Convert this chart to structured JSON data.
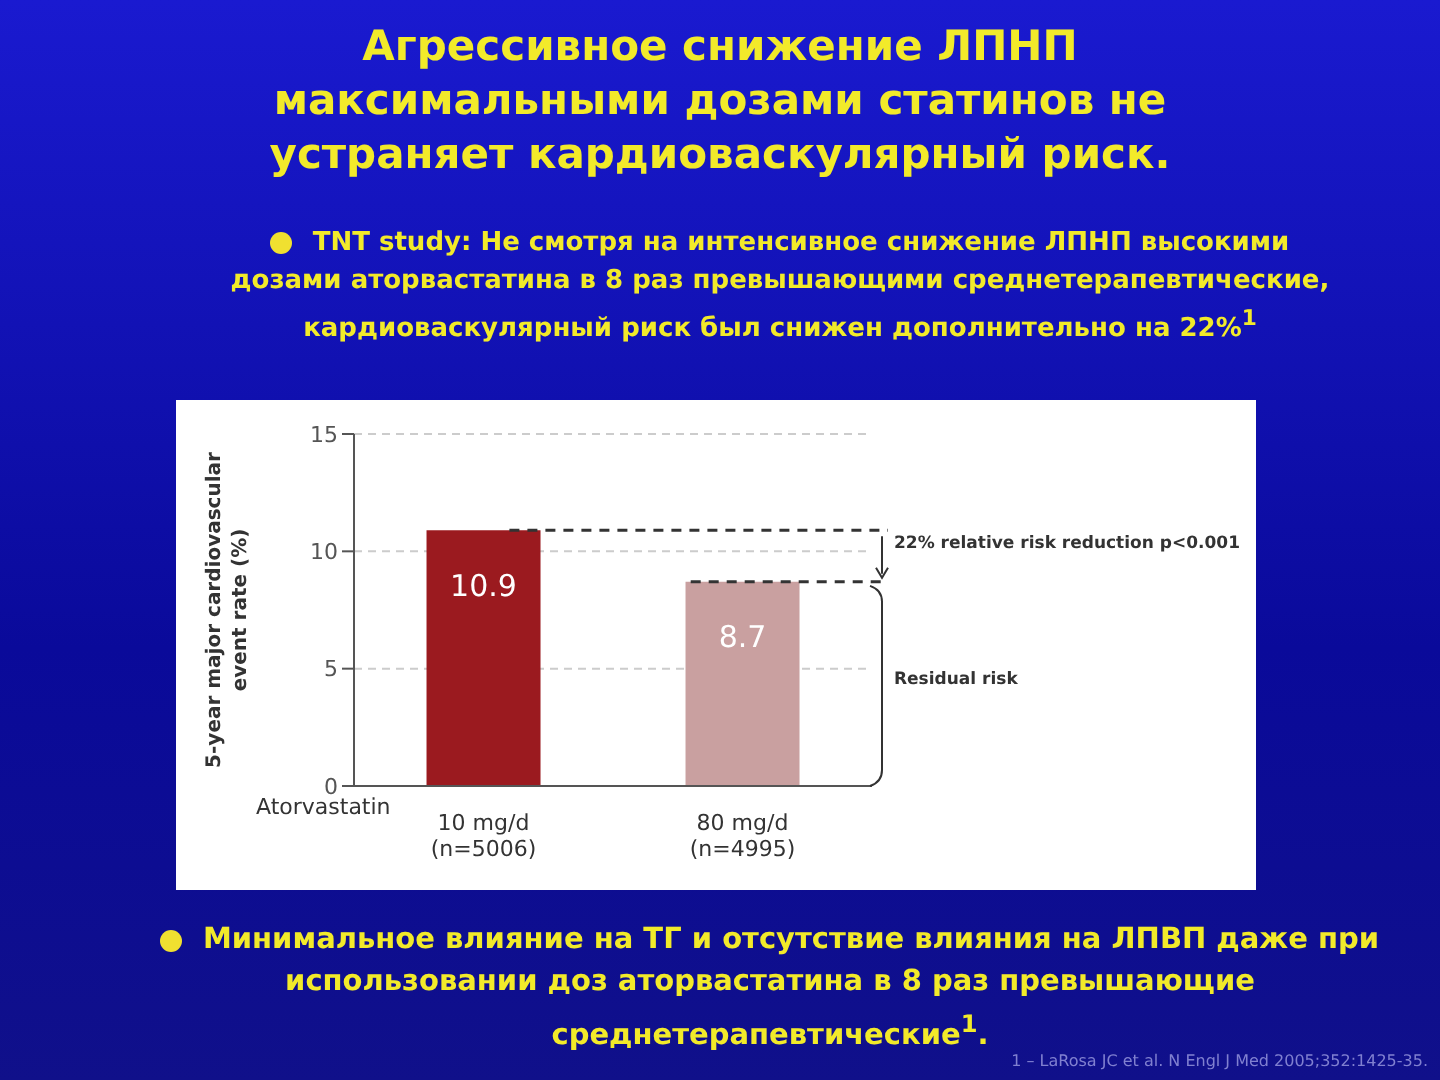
{
  "chart_data": {
    "type": "bar",
    "title": "Агрессивное снижение ЛПНП максимальными дозами статинов не устраняет кардиоваскулярный риск.",
    "subtitle": "TNT study: Не смотря на интенсивное снижение ЛПНП высокими дозами аторвастатина в 8 раз превышающими среднетерапевтические, кардиоваскулярный риск был снижен дополнительно на 22%$^{1}$",
    "categories": [
      "10 mg/d\n(n=5006)",
      "80 mg/d\n(n=4995)"
    ],
    "values": [
      10.9,
      8.7
    ],
    "colors": [
      "#9b1a1f",
      "#c9a0a0"
    ],
    "xlabel": "Atorvastatin",
    "ylabel": "5-year major cardiovascular\nevent rate (%)",
    "ylim": [
      0,
      15
    ],
    "yticks": [
      0,
      5,
      10,
      15
    ],
    "grid": "y",
    "data_labels": true,
    "ref_lines": [
      {
        "axis": "y",
        "value": 10.9,
        "color": "#333333",
        "line_style": "dashed"
      },
      {
        "axis": "y",
        "value": 8.7,
        "color": "#333333",
        "line_style": "dashed"
      }
    ],
    "annotations": [
      "22% relative risk reduction p<0.001",
      "Residual risk",
      "Минимальное влияние на ТГ и отсутствие влияния на ЛПВП даже при использовании доз аторвастатина в 8 раз превышающие среднетерапевтические$^{1}$.",
      "1 – LaRosa JC et al. N Engl J Med 2005;352:1425-35."
    ]
  }
}
